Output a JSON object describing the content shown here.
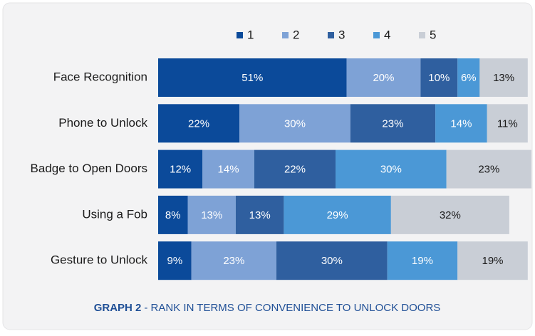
{
  "chart_data": {
    "type": "stacked-bar-horizontal",
    "categories": [
      "Face Recognition",
      "Phone to Unlock",
      "Badge to Open Doors",
      "Using a Fob",
      "Gesture to Unlock"
    ],
    "series": [
      {
        "name": "1",
        "color": "#0b4a9a",
        "values": [
          51,
          22,
          12,
          8,
          9
        ],
        "value_labels": [
          "51%",
          "22%",
          "12%",
          "8%",
          "9%"
        ]
      },
      {
        "name": "2",
        "color": "#7ea2d6",
        "values": [
          20,
          30,
          14,
          13,
          23
        ],
        "value_labels": [
          "20%",
          "30%",
          "14%",
          "13%",
          "23%"
        ]
      },
      {
        "name": "3",
        "color": "#2f5f9f",
        "values": [
          10,
          23,
          22,
          13,
          30
        ],
        "value_labels": [
          "10%",
          "23%",
          "22%",
          "13%",
          "30%"
        ]
      },
      {
        "name": "4",
        "color": "#4b98d6",
        "values": [
          6,
          14,
          30,
          29,
          19
        ],
        "value_labels": [
          "6%",
          "14%",
          "30%",
          "29%",
          "19%"
        ]
      },
      {
        "name": "5",
        "color": "#c9ced6",
        "values": [
          13,
          11,
          23,
          32,
          19
        ],
        "value_labels": [
          "13%",
          "11%",
          "23%",
          "32%",
          "19%"
        ]
      }
    ],
    "caption": {
      "label": "GRAPH 2",
      "text": "- RANK  IN TERMS OF CONVENIENCE TO UNLOCK DOORS"
    }
  }
}
